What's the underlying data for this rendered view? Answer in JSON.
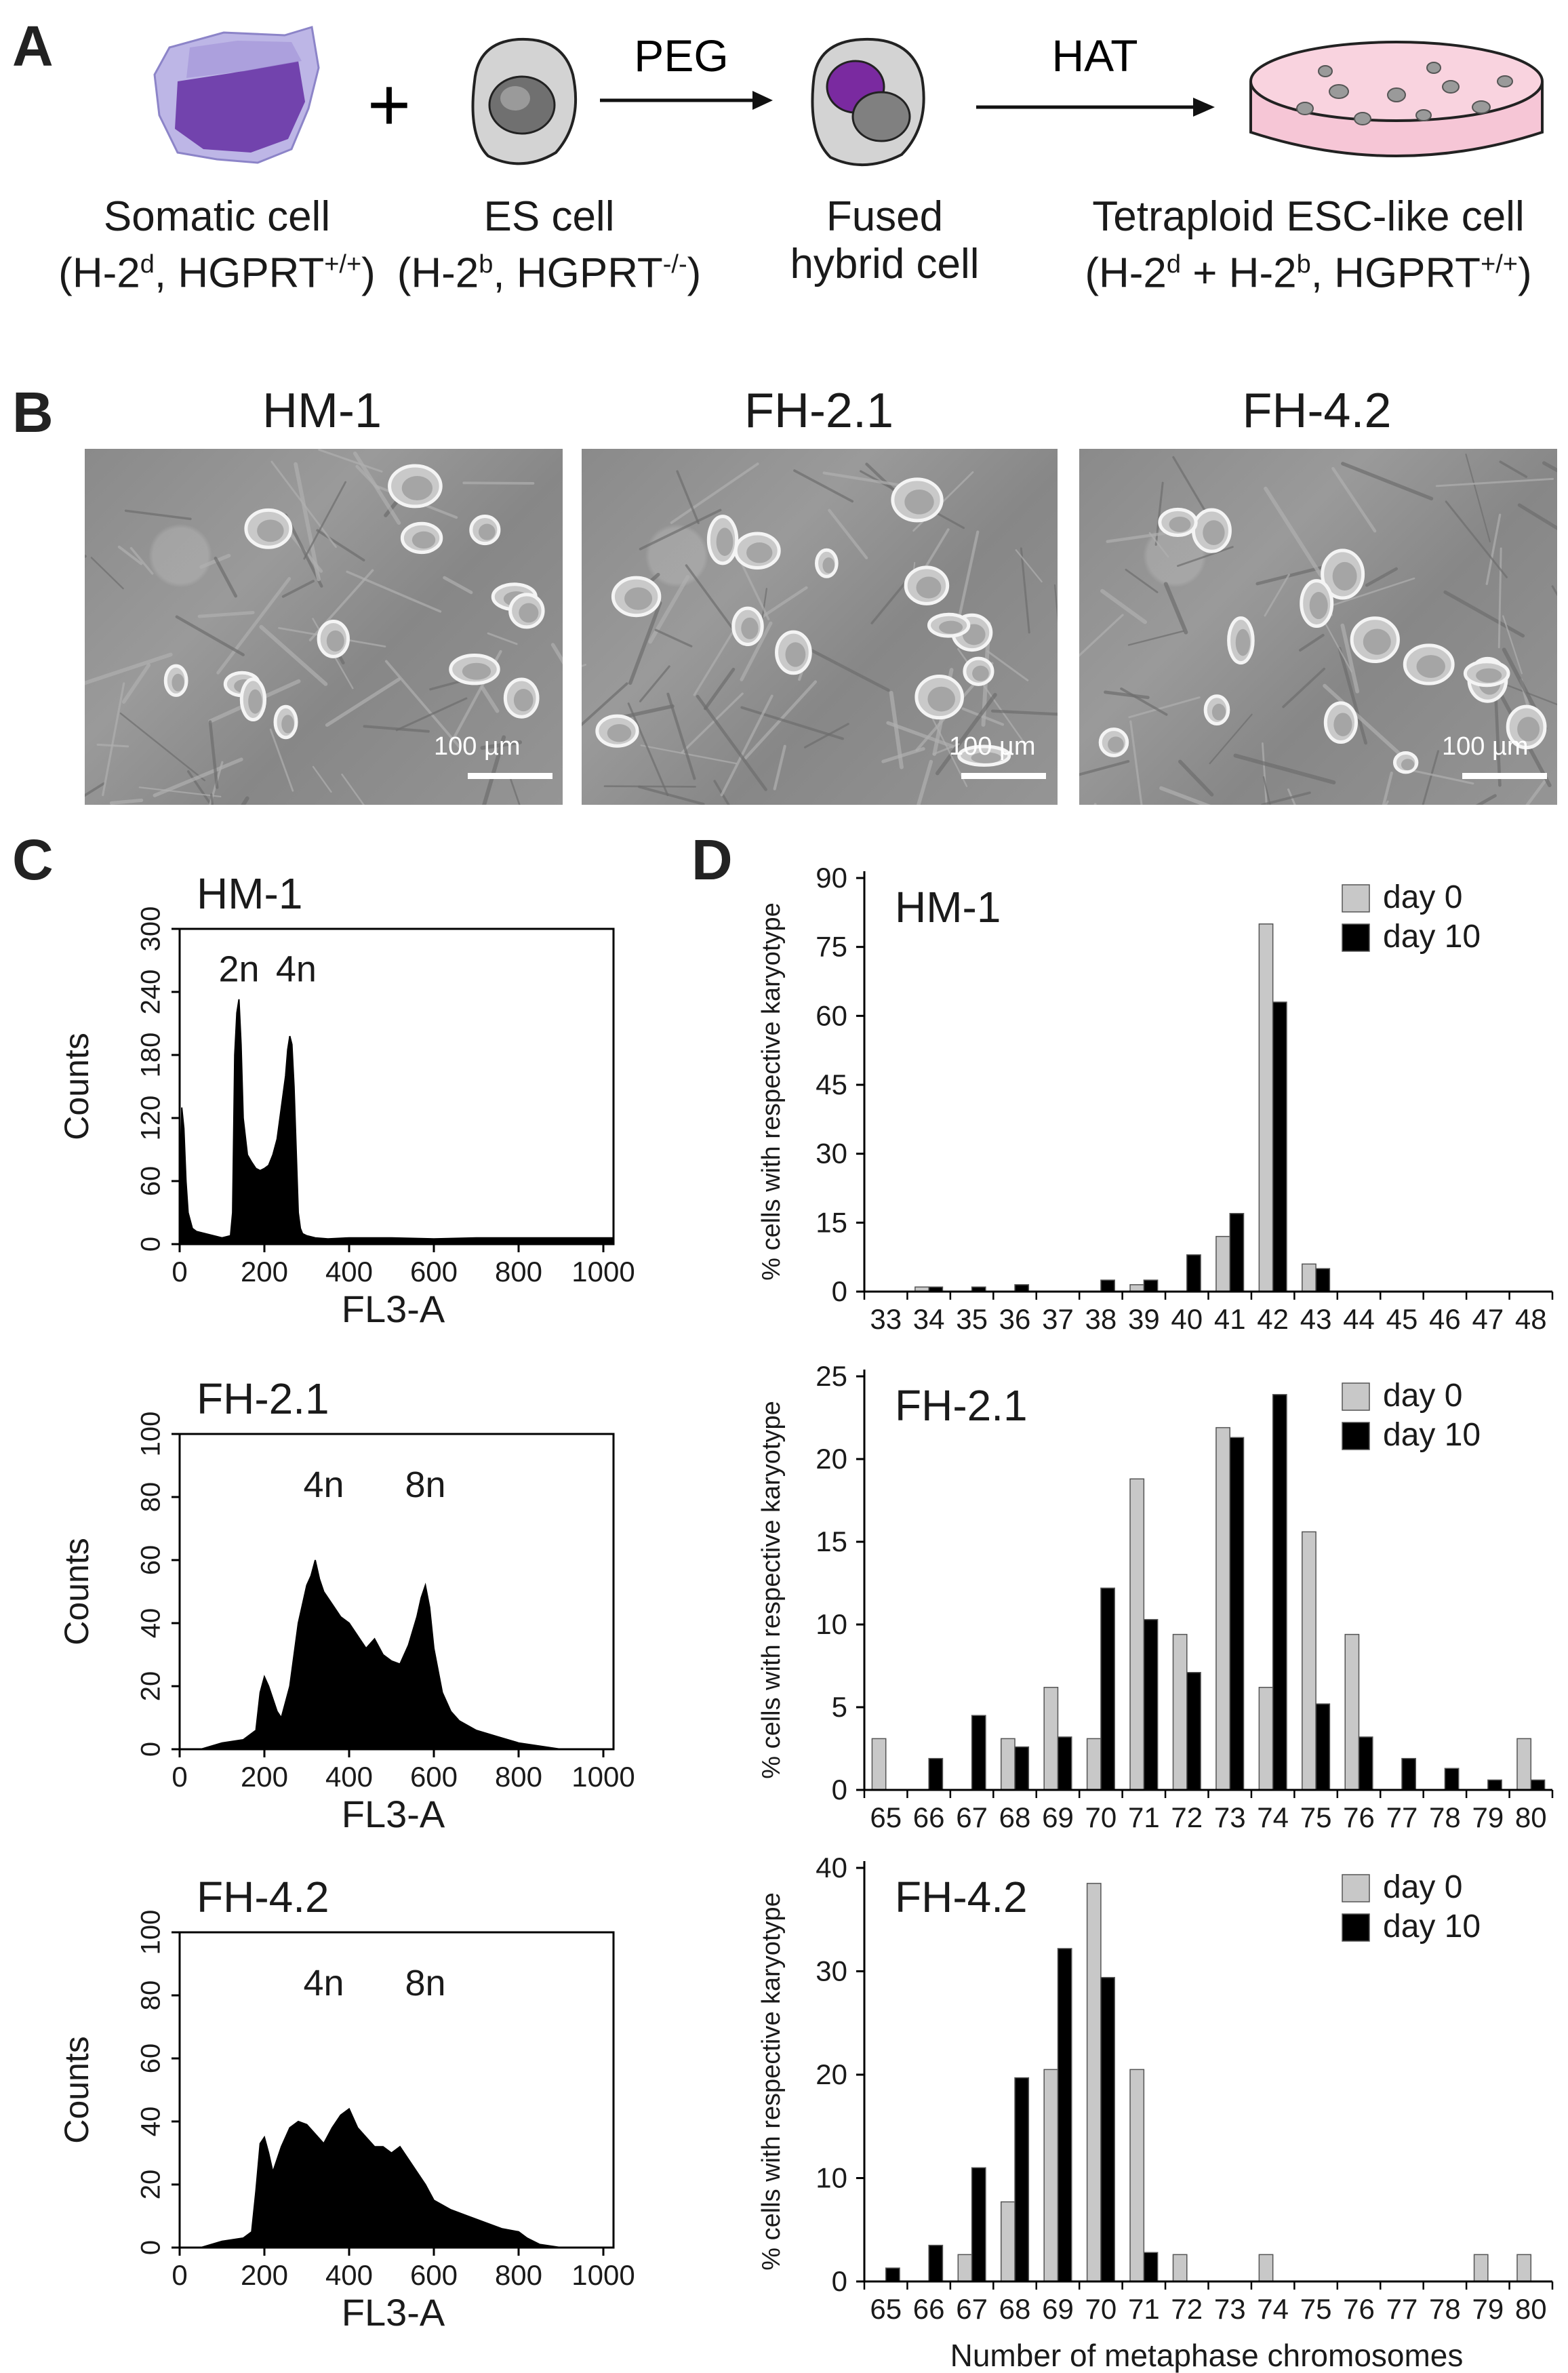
{
  "panels": {
    "a": {
      "letter": "A"
    },
    "b": {
      "letter": "B"
    },
    "c": {
      "letter": "C"
    },
    "d": {
      "letter": "D"
    }
  },
  "schematic": {
    "plus": "+",
    "arrow1_label": "PEG",
    "arrow2_label": "HAT",
    "somatic": {
      "line1": "Somatic cell",
      "line2_open": "(H-2",
      "line2_sup1": "d",
      "line2_mid": ", HGPRT",
      "line2_sup2": "+/+",
      "line2_close": ")"
    },
    "es": {
      "line1": "ES cell",
      "line2_open": "(H-2",
      "line2_sup1": "b",
      "line2_mid": ", HGPRT",
      "line2_sup2": "-/-",
      "line2_close": ")"
    },
    "fused": {
      "line1": "Fused",
      "line2": "hybrid cell"
    },
    "tetraploid": {
      "line1": "Tetraploid ESC-like cell",
      "line2_open": "(H-2",
      "line2_sup1": "d",
      "line2_mid": " + H-2",
      "line2_sup2": "b",
      "line2_mid2": ", HGPRT",
      "line2_sup3": "+/+",
      "line2_close": ")"
    },
    "colors": {
      "somatic_purple": "#6b3aa8",
      "dish_pink": "#f6c6d6",
      "cell_gray": "#d3d3d3"
    }
  },
  "micrographs": [
    {
      "title": "HM-1",
      "scale": "100 µm"
    },
    {
      "title": "FH-2.1",
      "scale": "100 µm"
    },
    {
      "title": "FH-4.2",
      "scale": "100 µm"
    }
  ],
  "chart_data": [
    {
      "type": "area",
      "panel": "C",
      "title": "HM-1",
      "xlabel": "FL3-A",
      "ylabel": "Counts",
      "xlim": [
        0,
        1024
      ],
      "ylim": [
        0,
        300
      ],
      "xticks": [
        0,
        200,
        400,
        600,
        800,
        1000
      ],
      "yticks": [
        0,
        60,
        120,
        180,
        240,
        300
      ],
      "annotations": [
        {
          "text": "2n",
          "x": 140,
          "y": 250
        },
        {
          "text": "4n",
          "x": 275,
          "y": 250
        }
      ],
      "x": [
        0,
        5,
        10,
        15,
        20,
        30,
        40,
        60,
        80,
        100,
        120,
        125,
        130,
        135,
        140,
        145,
        150,
        160,
        170,
        180,
        190,
        200,
        210,
        220,
        230,
        240,
        250,
        255,
        260,
        265,
        270,
        275,
        280,
        285,
        290,
        300,
        320,
        350,
        400,
        500,
        600,
        700,
        800,
        900,
        1000,
        1024
      ],
      "values": [
        0,
        130,
        110,
        60,
        30,
        15,
        12,
        10,
        8,
        6,
        8,
        30,
        180,
        220,
        233,
        190,
        120,
        85,
        78,
        72,
        70,
        72,
        75,
        85,
        100,
        130,
        160,
        185,
        198,
        190,
        150,
        90,
        30,
        15,
        10,
        8,
        6,
        5,
        6,
        6,
        5,
        6,
        6,
        6,
        6,
        6
      ]
    },
    {
      "type": "area",
      "panel": "C",
      "title": "FH-2.1",
      "xlabel": "FL3-A",
      "ylabel": "Counts",
      "xlim": [
        0,
        1024
      ],
      "ylim": [
        0,
        100
      ],
      "xticks": [
        0,
        200,
        400,
        600,
        800,
        1000
      ],
      "yticks": [
        0,
        20,
        40,
        60,
        80,
        100
      ],
      "annotations": [
        {
          "text": "4n",
          "x": 340,
          "y": 80
        },
        {
          "text": "8n",
          "x": 580,
          "y": 80
        }
      ],
      "x": [
        0,
        50,
        100,
        150,
        180,
        190,
        200,
        210,
        220,
        230,
        240,
        260,
        280,
        300,
        310,
        320,
        330,
        340,
        360,
        380,
        400,
        420,
        440,
        460,
        480,
        500,
        520,
        540,
        560,
        570,
        580,
        590,
        600,
        620,
        640,
        660,
        700,
        750,
        800,
        850,
        900,
        1000,
        1024
      ],
      "values": [
        0,
        0,
        2,
        3,
        6,
        18,
        23,
        20,
        16,
        12,
        10,
        20,
        40,
        52,
        55,
        60,
        54,
        50,
        46,
        42,
        40,
        36,
        32,
        35,
        30,
        28,
        27,
        33,
        42,
        48,
        52,
        45,
        32,
        18,
        12,
        9,
        6,
        4,
        2,
        1,
        0,
        0,
        0
      ]
    },
    {
      "type": "area",
      "panel": "C",
      "title": "FH-4.2",
      "xlabel": "FL3-A",
      "ylabel": "Counts",
      "xlim": [
        0,
        1024
      ],
      "ylim": [
        0,
        100
      ],
      "xticks": [
        0,
        200,
        400,
        600,
        800,
        1000
      ],
      "yticks": [
        0,
        20,
        40,
        60,
        80,
        100
      ],
      "annotations": [
        {
          "text": "4n",
          "x": 340,
          "y": 80
        },
        {
          "text": "8n",
          "x": 580,
          "y": 80
        }
      ],
      "x": [
        0,
        50,
        100,
        150,
        170,
        180,
        190,
        200,
        210,
        220,
        240,
        260,
        280,
        300,
        320,
        340,
        360,
        380,
        400,
        420,
        440,
        460,
        480,
        500,
        520,
        540,
        560,
        580,
        600,
        640,
        680,
        720,
        760,
        800,
        820,
        850,
        900,
        1000,
        1024
      ],
      "values": [
        0,
        0,
        2,
        3,
        5,
        18,
        33,
        35,
        30,
        24,
        32,
        38,
        40,
        39,
        36,
        33,
        38,
        42,
        44,
        38,
        35,
        32,
        32,
        30,
        32,
        28,
        24,
        20,
        15,
        12,
        10,
        8,
        6,
        5,
        3,
        1,
        0,
        0,
        0
      ]
    },
    {
      "type": "bar",
      "panel": "D",
      "title": "HM-1",
      "xlabel": "",
      "ylabel": "% cells with respective karyotype",
      "ylim": [
        0,
        90
      ],
      "yticks": [
        0,
        15,
        30,
        45,
        60,
        75,
        90
      ],
      "categories": [
        "33",
        "34",
        "35",
        "36",
        "37",
        "38",
        "39",
        "40",
        "41",
        "42",
        "43",
        "44",
        "45",
        "46",
        "47",
        "48"
      ],
      "series": [
        {
          "name": "day 0",
          "color": "#c8c8c8",
          "values": [
            0,
            1,
            0,
            0,
            0,
            0,
            1.5,
            0,
            12,
            80,
            6,
            0,
            0,
            0,
            0,
            0
          ]
        },
        {
          "name": "day 10",
          "color": "#000000",
          "values": [
            0,
            1,
            1,
            1.5,
            0,
            2.5,
            2.5,
            8,
            17,
            63,
            5,
            0,
            0,
            0,
            0,
            0
          ]
        }
      ],
      "legend": "top-right"
    },
    {
      "type": "bar",
      "panel": "D",
      "title": "FH-2.1",
      "xlabel": "",
      "ylabel": "% cells with respective karyotype",
      "ylim": [
        0,
        25
      ],
      "yticks": [
        0,
        5,
        10,
        15,
        20,
        25
      ],
      "categories": [
        "65",
        "66",
        "67",
        "68",
        "69",
        "70",
        "71",
        "72",
        "73",
        "74",
        "75",
        "76",
        "77",
        "78",
        "79",
        "80"
      ],
      "series": [
        {
          "name": "day 0",
          "color": "#c8c8c8",
          "values": [
            3.1,
            0,
            0,
            3.1,
            6.2,
            3.1,
            18.8,
            9.4,
            21.9,
            6.2,
            15.6,
            9.4,
            0,
            0,
            0,
            3.1
          ]
        },
        {
          "name": "day 10",
          "color": "#000000",
          "values": [
            0,
            1.9,
            4.5,
            2.6,
            3.2,
            12.2,
            10.3,
            7.1,
            21.3,
            23.9,
            5.2,
            3.2,
            1.9,
            1.3,
            0.6,
            0.6
          ]
        }
      ],
      "legend": "top-right"
    },
    {
      "type": "bar",
      "panel": "D",
      "title": "FH-4.2",
      "xlabel": "Number of metaphase chromosomes",
      "ylabel": "% cells with respective karyotype",
      "ylim": [
        0,
        40
      ],
      "yticks": [
        0,
        10,
        20,
        30,
        40
      ],
      "categories": [
        "65",
        "66",
        "67",
        "68",
        "69",
        "70",
        "71",
        "72",
        "73",
        "74",
        "75",
        "76",
        "77",
        "78",
        "79",
        "80"
      ],
      "series": [
        {
          "name": "day 0",
          "color": "#c8c8c8",
          "values": [
            0,
            0,
            2.6,
            7.7,
            20.5,
            38.5,
            20.5,
            2.6,
            0,
            2.6,
            0,
            0,
            0,
            0,
            2.6,
            2.6
          ]
        },
        {
          "name": "day 10",
          "color": "#000000",
          "values": [
            1.3,
            3.5,
            11,
            19.7,
            32.2,
            29.4,
            2.8,
            0,
            0,
            0,
            0,
            0,
            0,
            0,
            0,
            0
          ]
        }
      ],
      "legend": "top-right"
    }
  ]
}
